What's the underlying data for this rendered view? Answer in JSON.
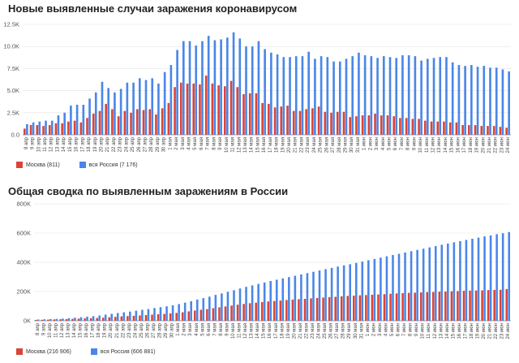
{
  "chart_data": [
    {
      "type": "bar",
      "title": "Новые выявленные случаи заражения коронавирусом",
      "ylim": [
        0,
        12500
      ],
      "y_ticks": [
        "0.0",
        "2.5K",
        "5.0K",
        "7.5K",
        "10.0K",
        "12.5K"
      ],
      "y_tick_values": [
        0,
        2500,
        5000,
        7500,
        10000,
        12500
      ],
      "grid": true,
      "legend_position": "bottom-left",
      "categories": [
        "8 апр",
        "9 апр",
        "10 апр",
        "11 апр",
        "12 апр",
        "13 апр",
        "14 апр",
        "15 апр",
        "16 апр",
        "17 апр",
        "18 апр",
        "19 апр",
        "20 апр",
        "21 апр",
        "22 апр",
        "23 апр",
        "24 апр",
        "25 апр",
        "26 апр",
        "27 апр",
        "28 апр",
        "29 апр",
        "30 апр",
        "1 мая",
        "2 мая",
        "3 мая",
        "4 мая",
        "5 мая",
        "6 мая",
        "7 мая",
        "8 мая",
        "9 мая",
        "10 мая",
        "11 мая",
        "12 мая",
        "13 мая",
        "14 мая",
        "15 мая",
        "16 мая",
        "17 мая",
        "18 мая",
        "19 мая",
        "20 мая",
        "21 мая",
        "22 мая",
        "23 мая",
        "24 мая",
        "25 мая",
        "26 мая",
        "27 мая",
        "28 мая",
        "29 мая",
        "30 мая",
        "31 мая",
        "1 июн",
        "2 июн",
        "3 июн",
        "4 июн",
        "5 июн",
        "6 июн",
        "7 июн",
        "8 июн",
        "9 июн",
        "10 июн",
        "11 июн",
        "12 июн",
        "13 июн",
        "14 июн",
        "15 июн",
        "16 июн",
        "17 июн",
        "18 июн",
        "19 июн",
        "20 июн",
        "21 июн",
        "22 июн",
        "23 июн",
        "24 июн"
      ],
      "series": [
        {
          "name": "Москва (811)",
          "color": "#db4437",
          "values": [
            700,
            1100,
            1100,
            1000,
            1100,
            1300,
            1300,
            1500,
            1600,
            1400,
            1900,
            2400,
            2700,
            3500,
            2900,
            2100,
            2700,
            2500,
            2900,
            2800,
            2900,
            2300,
            3000,
            3600,
            5400,
            5900,
            5800,
            5800,
            5700,
            6700,
            5800,
            5600,
            5500,
            6100,
            5400,
            4600,
            4700,
            4700,
            3600,
            3500,
            3100,
            3200,
            3300,
            2700,
            2700,
            2900,
            3000,
            3200,
            2600,
            2500,
            2600,
            2600,
            2000,
            2100,
            2200,
            2200,
            2400,
            2200,
            2200,
            2100,
            1900,
            1900,
            1800,
            1800,
            1600,
            1500,
            1500,
            1500,
            1400,
            1400,
            1100,
            1100,
            1100,
            1000,
            1000,
            1000,
            900,
            800
          ]
        },
        {
          "name": "вся Россия (7 176)",
          "color": "#4a86e8",
          "values": [
            1200,
            1400,
            1500,
            1600,
            1600,
            2200,
            2500,
            3300,
            3400,
            3400,
            4100,
            4800,
            6000,
            5300,
            4800,
            5200,
            5900,
            5900,
            6400,
            6200,
            6400,
            5800,
            7100,
            7900,
            9600,
            10600,
            10600,
            10100,
            10600,
            11200,
            10700,
            10800,
            11000,
            11600,
            10900,
            10000,
            10000,
            10600,
            9700,
            9300,
            9100,
            8800,
            8800,
            8900,
            8900,
            9400,
            8600,
            8900,
            8800,
            8300,
            8300,
            8600,
            8900,
            9300,
            9000,
            8900,
            8700,
            8900,
            8800,
            8700,
            9000,
            9000,
            8900,
            8400,
            8600,
            8700,
            8800,
            8800,
            8200,
            7900,
            7800,
            7900,
            7700,
            7800,
            7600,
            7600,
            7400,
            7176
          ]
        }
      ]
    },
    {
      "type": "bar",
      "title": "Общая сводка по выявленным заражениям в России",
      "ylim": [
        0,
        800000
      ],
      "y_ticks": [
        "0K",
        "200K",
        "400K",
        "600K",
        "800K"
      ],
      "y_tick_values": [
        0,
        200000,
        400000,
        600000,
        800000
      ],
      "grid": true,
      "legend_position": "bottom-left",
      "categories": [
        "8 апр",
        "9 апр",
        "10 апр",
        "11 апр",
        "12 апр",
        "13 апр",
        "14 апр",
        "15 апр",
        "16 апр",
        "17 апр",
        "18 апр",
        "19 апр",
        "20 апр",
        "21 апр",
        "22 апр",
        "23 апр",
        "24 апр",
        "25 апр",
        "26 апр",
        "27 апр",
        "28 апр",
        "29 апр",
        "30 апр",
        "1 мая",
        "2 мая",
        "3 мая",
        "4 мая",
        "5 мая",
        "6 мая",
        "7 мая",
        "8 мая",
        "9 мая",
        "10 мая",
        "11 мая",
        "12 мая",
        "13 мая",
        "14 мая",
        "15 мая",
        "16 мая",
        "17 мая",
        "18 мая",
        "19 мая",
        "20 мая",
        "21 мая",
        "22 мая",
        "23 мая",
        "24 мая",
        "25 мая",
        "26 мая",
        "27 мая",
        "28 мая",
        "29 мая",
        "30 мая",
        "31 мая",
        "1 июн",
        "2 июн",
        "3 июн",
        "4 июн",
        "5 июн",
        "6 июн",
        "7 июн",
        "8 июн",
        "9 июн",
        "10 июн",
        "11 июн",
        "12 июн",
        "13 июн",
        "14 июн",
        "15 июн",
        "16 июн",
        "17 июн",
        "18 июн",
        "19 июн",
        "20 июн",
        "21 июн",
        "22 июн",
        "23 июн",
        "24 июн"
      ],
      "series": [
        {
          "name": "Москва (216 906)",
          "color": "#db4437",
          "values": [
            5800,
            6700,
            8000,
            9000,
            10200,
            11500,
            13000,
            14800,
            16000,
            17500,
            19000,
            21000,
            24000,
            27000,
            30000,
            32000,
            34000,
            36500,
            39000,
            42000,
            44500,
            47000,
            50000,
            53500,
            58000,
            64000,
            70000,
            75000,
            80000,
            86000,
            92000,
            98000,
            104000,
            110000,
            115000,
            120000,
            124000,
            128000,
            132000,
            135000,
            138000,
            142000,
            145000,
            148000,
            150000,
            153000,
            156000,
            159000,
            162000,
            164000,
            167000,
            170000,
            172000,
            174000,
            176000,
            178000,
            180000,
            182000,
            185000,
            187000,
            189000,
            191000,
            192000,
            194000,
            196000,
            197000,
            199000,
            200000,
            202000,
            203000,
            205000,
            206000,
            207000,
            208000,
            210000,
            211000,
            212000,
            216906
          ]
        },
        {
          "name": "вся Россия (606 881)",
          "color": "#4a86e8",
          "values": [
            8700,
            10100,
            11500,
            13000,
            15000,
            18000,
            21000,
            24500,
            28000,
            32000,
            36000,
            42000,
            47000,
            52800,
            58000,
            63000,
            69000,
            75000,
            80000,
            87000,
            93000,
            99000,
            106000,
            114000,
            124000,
            134000,
            145000,
            155000,
            165000,
            177000,
            187000,
            198000,
            209000,
            221000,
            232000,
            242000,
            252000,
            262000,
            272000,
            281000,
            290000,
            299000,
            308000,
            317000,
            326000,
            335000,
            344000,
            353000,
            362000,
            371000,
            379000,
            387000,
            396000,
            405000,
            414000,
            423000,
            432000,
            441000,
            450000,
            458000,
            467000,
            476000,
            485000,
            493000,
            502000,
            511000,
            520000,
            528000,
            537000,
            545000,
            553000,
            561000,
            569000,
            577000,
            584000,
            592000,
            599000,
            606881
          ]
        }
      ]
    }
  ]
}
